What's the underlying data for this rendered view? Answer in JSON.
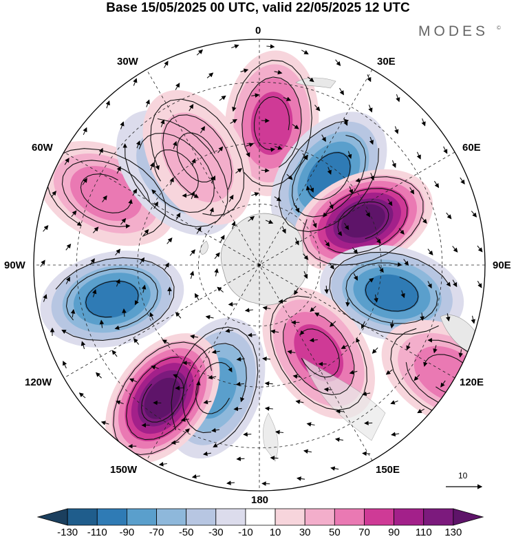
{
  "title": "Base 15/05/2025 00 UTC, valid 22/05/2025 12 UTC",
  "brand": "MODES",
  "brand_mark": "©",
  "longitude_labels": {
    "lon_0": "0",
    "lon_30e": "30E",
    "lon_60e": "60E",
    "lon_90e": "90E",
    "lon_120e": "120E",
    "lon_150e": "150E",
    "lon_180": "180",
    "lon_150w": "150W",
    "lon_120w": "120W",
    "lon_90w": "90W",
    "lon_60w": "60W",
    "lon_30w": "30W"
  },
  "vector_reference": "10",
  "colorbar": {
    "labels": [
      "-130",
      "-110",
      "-90",
      "-70",
      "-50",
      "-30",
      "-10",
      "10",
      "30",
      "50",
      "70",
      "90",
      "110",
      "130"
    ],
    "colors": [
      "#1b3f5e",
      "#1f5d8c",
      "#2f7bb5",
      "#5a9fcc",
      "#8eb8db",
      "#b7c6e2",
      "#dcdcec",
      "#ffffff",
      "#f7d5dc",
      "#f3aecb",
      "#ea79b3",
      "#cf3a96",
      "#a3208a",
      "#7c1a7d",
      "#5e1469"
    ]
  },
  "anomaly_centers": [
    {
      "lon": 5,
      "ring": 0.63,
      "value": 60
    },
    {
      "lon": 38,
      "ring": 0.5,
      "value": -80
    },
    {
      "lon": 67,
      "ring": 0.5,
      "value": 120
    },
    {
      "lon": 102,
      "ring": 0.6,
      "value": -90
    },
    {
      "lon": 146,
      "ring": 0.47,
      "value": 70
    },
    {
      "lon": 200,
      "ring": 0.58,
      "value": -70
    },
    {
      "lon": 216,
      "ring": 0.73,
      "value": 120
    },
    {
      "lon": 257,
      "ring": 0.67,
      "value": -90
    },
    {
      "lon": 295,
      "ring": 0.75,
      "value": 40
    },
    {
      "lon": 120,
      "ring": 0.97,
      "value": 40
    },
    {
      "lon": 318,
      "ring": 0.55,
      "value": -30
    },
    {
      "lon": 330,
      "ring": 0.55,
      "value": 30
    }
  ]
}
